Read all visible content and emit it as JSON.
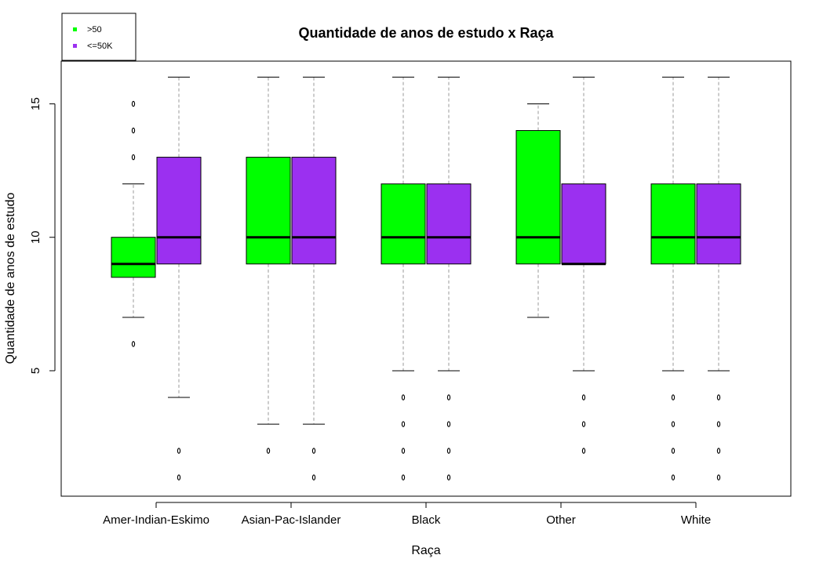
{
  "chart_data": {
    "type": "box",
    "title": "Quantidade de anos de estudo x Raça",
    "xlabel": "Raça",
    "ylabel": "Quantidade de anos de estudo",
    "ylim": [
      0.3,
      16.6
    ],
    "yticks": [
      5,
      10,
      15
    ],
    "categories": [
      "Amer-Indian-Eskimo",
      "Asian-Pac-Islander",
      "Black",
      "Other",
      "White"
    ],
    "grid": false,
    "legend_position": "top-left",
    "series": [
      {
        "name": ">50",
        "color": "#00ff00",
        "boxes": [
          {
            "whisker_low": 7,
            "q1": 8.5,
            "median": 9,
            "q3": 10,
            "whisker_high": 12,
            "outliers": [
              6,
              13,
              14,
              15
            ]
          },
          {
            "whisker_low": 3,
            "q1": 9,
            "median": 10,
            "q3": 13,
            "whisker_high": 16,
            "outliers": [
              2
            ]
          },
          {
            "whisker_low": 5,
            "q1": 9,
            "median": 10,
            "q3": 12,
            "whisker_high": 16,
            "outliers": [
              1,
              2,
              3,
              4
            ]
          },
          {
            "whisker_low": 7,
            "q1": 9,
            "median": 10,
            "q3": 14,
            "whisker_high": 15,
            "outliers": []
          },
          {
            "whisker_low": 5,
            "q1": 9,
            "median": 10,
            "q3": 12,
            "whisker_high": 16,
            "outliers": [
              1,
              2,
              3,
              4
            ]
          }
        ]
      },
      {
        "name": "<=50K",
        "color": "#9b30f0",
        "boxes": [
          {
            "whisker_low": 4,
            "q1": 9,
            "median": 10,
            "q3": 13,
            "whisker_high": 16,
            "outliers": [
              1,
              2
            ]
          },
          {
            "whisker_low": 3,
            "q1": 9,
            "median": 10,
            "q3": 13,
            "whisker_high": 16,
            "outliers": [
              1,
              2
            ]
          },
          {
            "whisker_low": 5,
            "q1": 9,
            "median": 10,
            "q3": 12,
            "whisker_high": 16,
            "outliers": [
              1,
              2,
              3,
              4
            ]
          },
          {
            "whisker_low": 5,
            "q1": 9,
            "median": 9,
            "q3": 12,
            "whisker_high": 16,
            "outliers": [
              2,
              3,
              4
            ]
          },
          {
            "whisker_low": 5,
            "q1": 9,
            "median": 10,
            "q3": 12,
            "whisker_high": 16,
            "outliers": [
              1,
              2,
              3,
              4
            ]
          }
        ]
      }
    ]
  }
}
